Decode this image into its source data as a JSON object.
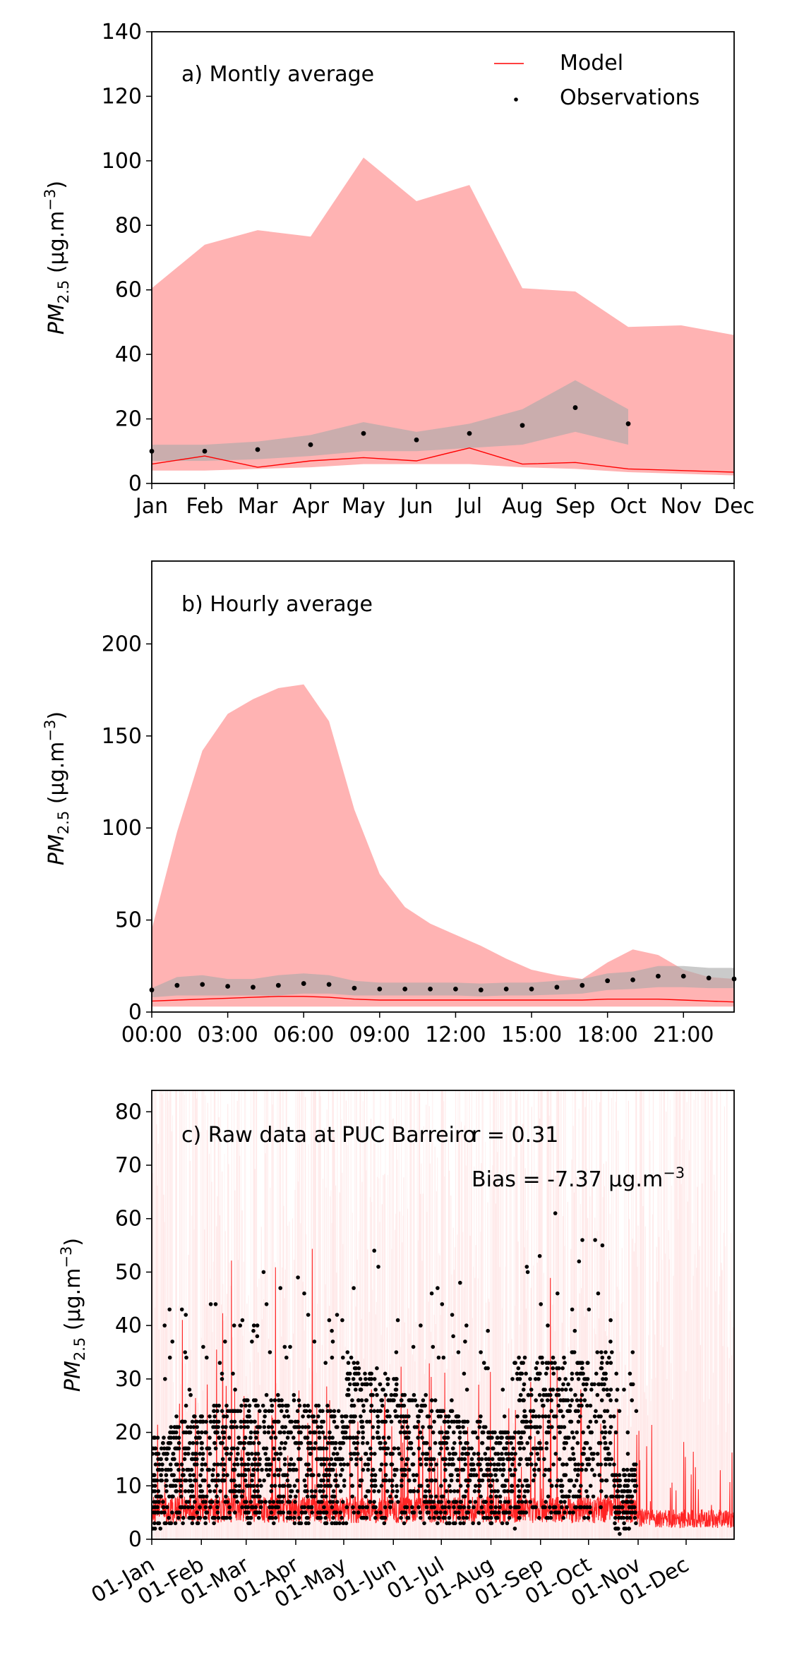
{
  "colors": {
    "model": "#ff0000",
    "band_model": "#ffb3b3",
    "band_obs": "#a9a9a9",
    "obs": "#000000"
  },
  "panels": [
    {
      "id": "monthly",
      "title": "a) Montly average",
      "ylabel": "PM",
      "ylabel_sub": "2.5",
      "ylabel_unit": " (μg.m",
      "ylabel_exp": "−3",
      "ylabel_close": ")",
      "legend": {
        "model": "Model",
        "obs": "Observations"
      }
    },
    {
      "id": "hourly",
      "title": "b) Hourly average",
      "ylabel": "PM",
      "ylabel_sub": "2.5",
      "ylabel_unit": " (μg.m",
      "ylabel_exp": "−3",
      "ylabel_close": ")"
    },
    {
      "id": "raw",
      "title": "c) Raw data at PUC Barreiro",
      "ylabel": "PM",
      "ylabel_sub": "2.5",
      "ylabel_unit": " (μg.m",
      "ylabel_exp": "−3",
      "ylabel_close": ")",
      "stat_r": "r = 0.31",
      "stat_bias": "Bias = -7.37 μg.m",
      "stat_bias_exp": "−3"
    }
  ],
  "chart_data": [
    {
      "type": "area",
      "title": "a) Montly average",
      "x_ticks": [
        "Jan",
        "Feb",
        "Mar",
        "Apr",
        "May",
        "Jun",
        "Jul",
        "Aug",
        "Sep",
        "Oct",
        "Nov",
        "Dec"
      ],
      "ylim": [
        0,
        140
      ],
      "y_ticks": [
        0,
        20,
        40,
        60,
        80,
        100,
        120,
        140
      ],
      "model_mean": [
        6,
        8.5,
        5,
        7,
        8,
        7,
        11,
        6,
        6.5,
        4.5,
        4,
        3.5
      ],
      "model_band_low": [
        4,
        4,
        4.5,
        5,
        6,
        6,
        6,
        5,
        4.5,
        3.5,
        3,
        2.5
      ],
      "model_band_high": [
        60.5,
        74,
        78.5,
        76.5,
        101,
        87.5,
        92.5,
        60.5,
        59.5,
        48.5,
        49,
        46
      ],
      "obs_mean": [
        10,
        10,
        10.5,
        12,
        15.5,
        13.5,
        15.5,
        18,
        23.5,
        18.5
      ],
      "obs_band_low": [
        7,
        7,
        7.5,
        8.5,
        10,
        10,
        11,
        12,
        16,
        12
      ],
      "obs_band_high": [
        12,
        12,
        13,
        15,
        19,
        16,
        18.5,
        23,
        32,
        23
      ]
    },
    {
      "type": "area",
      "title": "b) Hourly average",
      "x_ticks": [
        "00:00",
        "03:00",
        "06:00",
        "09:00",
        "12:00",
        "15:00",
        "18:00",
        "21:00"
      ],
      "hours": [
        0,
        1,
        2,
        3,
        4,
        5,
        6,
        7,
        8,
        9,
        10,
        11,
        12,
        13,
        14,
        15,
        16,
        17,
        18,
        19,
        20,
        21,
        22,
        23
      ],
      "ylim": [
        0,
        245
      ],
      "y_ticks": [
        0,
        50,
        100,
        150,
        200
      ],
      "model_mean": [
        6,
        6.5,
        7,
        7.5,
        8,
        8.5,
        8.5,
        8,
        7,
        6.5,
        6.5,
        6.5,
        6.5,
        6.5,
        6.5,
        6.5,
        6.5,
        6.5,
        7,
        7,
        7,
        6.5,
        6,
        5.5
      ],
      "model_band_low": [
        3,
        3,
        3,
        3,
        3,
        3,
        3,
        3,
        3,
        3,
        3,
        3,
        3,
        3,
        3,
        3,
        3,
        3,
        3,
        3,
        3,
        3,
        3,
        3
      ],
      "model_band_high": [
        45,
        98,
        142,
        162,
        170,
        176,
        178,
        158,
        110,
        75,
        57,
        48,
        42,
        36,
        29,
        23,
        20,
        18,
        27,
        34,
        31,
        23,
        19,
        18
      ],
      "obs_mean": [
        12,
        14.5,
        15,
        14,
        13.5,
        14.5,
        15.5,
        15,
        13,
        12.5,
        12.5,
        12.5,
        12.5,
        12,
        12.5,
        12.5,
        13.5,
        14.5,
        17,
        17.5,
        19.5,
        19.5,
        18.5,
        18
      ],
      "obs_band_low": [
        8,
        9,
        9,
        9,
        9,
        9,
        10,
        10,
        9,
        9,
        9,
        9,
        9,
        8.5,
        9,
        9,
        9.5,
        10,
        12,
        12.5,
        13.5,
        13.5,
        13,
        13
      ],
      "obs_band_high": [
        13,
        19,
        20,
        18,
        18,
        20,
        21,
        20,
        17,
        16,
        16,
        16,
        16,
        15.5,
        16,
        16,
        17,
        18,
        21,
        22,
        25,
        25,
        24,
        24
      ]
    },
    {
      "type": "line",
      "title": "c) Raw data at PUC Barreiro",
      "x_ticks": [
        "01-Jan",
        "01-Feb",
        "01-Mar",
        "01-Apr",
        "01-May",
        "01-Jun",
        "01-Jul",
        "01-Aug",
        "01-Sep",
        "01-Oct",
        "01-Nov",
        "01-Dec"
      ],
      "x_range_dates": [
        "2021-01-01",
        "2021-12-31"
      ],
      "ylim": [
        0,
        84
      ],
      "y_ticks": [
        0,
        10,
        20,
        30,
        40,
        50,
        60,
        70,
        80
      ],
      "obs_end_date": "2021-10-31",
      "r": 0.31,
      "bias": -7.37
    }
  ]
}
